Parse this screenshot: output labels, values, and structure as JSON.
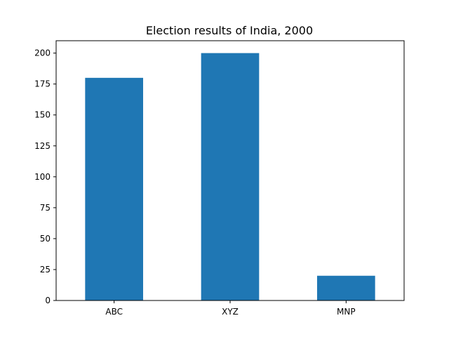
{
  "chart_data": {
    "type": "bar",
    "title": "Election results of India, 2000",
    "xlabel": "",
    "ylabel": "",
    "categories": [
      "ABC",
      "XYZ",
      "MNP"
    ],
    "values": [
      180,
      200,
      20
    ],
    "ylim": [
      0,
      210
    ],
    "yticks": [
      0,
      25,
      50,
      75,
      100,
      125,
      150,
      175,
      200
    ],
    "grid": false,
    "bar_color": "#1f77b4"
  }
}
